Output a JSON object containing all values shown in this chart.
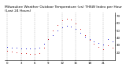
{
  "title": "Milwaukee Weather Outdoor Temperature (vs) THSW Index per Hour (Last 24 Hours)",
  "hours": [
    0,
    1,
    2,
    3,
    4,
    5,
    6,
    7,
    8,
    9,
    10,
    11,
    12,
    13,
    14,
    15,
    16,
    17,
    18,
    19,
    20,
    21,
    22,
    23
  ],
  "temp": [
    28,
    27,
    27,
    26,
    26,
    26,
    26,
    27,
    32,
    38,
    44,
    50,
    54,
    56,
    55,
    52,
    47,
    42,
    38,
    35,
    33,
    31,
    38,
    35
  ],
  "thsw": [
    22,
    21,
    20,
    19,
    19,
    18,
    18,
    19,
    27,
    38,
    50,
    58,
    64,
    66,
    65,
    60,
    52,
    44,
    37,
    32,
    28,
    25,
    30,
    27
  ],
  "temp_color": "#0000cc",
  "thsw_color": "#cc0000",
  "ylim_min": 10,
  "ylim_max": 75,
  "background": "#ffffff",
  "grid_color": "#888888",
  "title_fontsize": 3.2,
  "tick_fontsize": 2.8,
  "ylabel_right_values": [
    70,
    60,
    50,
    40,
    30,
    20
  ],
  "xtick_positions": [
    0,
    3,
    6,
    9,
    12,
    15,
    18,
    21
  ],
  "xtick_labels": [
    "0",
    "3",
    "6",
    "9",
    "12",
    "15",
    "18",
    "21"
  ]
}
